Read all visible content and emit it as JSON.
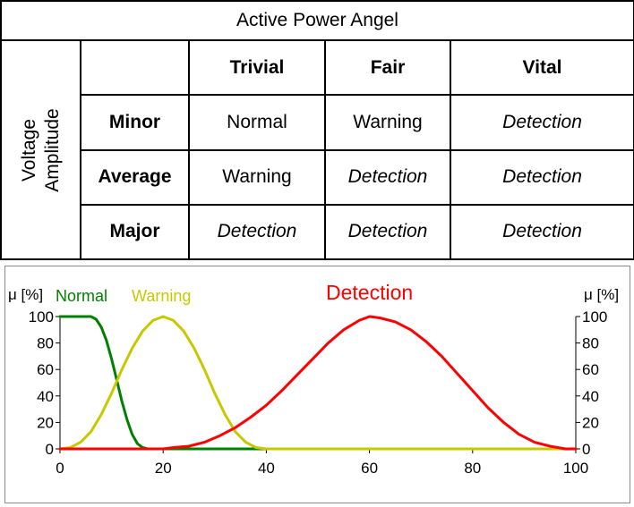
{
  "table": {
    "title": "Active Power Angel",
    "row_axis_label": [
      "Voltage",
      "Amplitude"
    ],
    "columns": [
      "Trivial",
      "Fair",
      "Vital"
    ],
    "rows": [
      {
        "label": "Minor",
        "cells": [
          "Normal",
          "Warning",
          "Detection"
        ]
      },
      {
        "label": "Average",
        "cells": [
          "Warning",
          "Detection",
          "Detection"
        ]
      },
      {
        "label": "Major",
        "cells": [
          "Detection",
          "Detection",
          "Detection"
        ]
      }
    ]
  },
  "chart_data": {
    "type": "line",
    "ylabel_left": "μ [%]",
    "ylabel_right": "μ [%]",
    "xlim": [
      0,
      100
    ],
    "ylim": [
      0,
      100
    ],
    "xticks": [
      0,
      20,
      40,
      60,
      80,
      100
    ],
    "yticks": [
      0,
      20,
      40,
      60,
      80,
      100
    ],
    "grid": false,
    "series": [
      {
        "name": "Normal",
        "color": "#008000",
        "x": [
          0,
          2,
          4,
          6,
          7,
          8,
          9,
          10,
          11,
          12,
          13,
          14,
          15,
          16,
          17,
          18,
          20,
          40,
          60,
          80,
          100
        ],
        "y": [
          100,
          100,
          100,
          100,
          98,
          92,
          82,
          68,
          52,
          36,
          22,
          11,
          4,
          1,
          0,
          0,
          0,
          0,
          0,
          0,
          0
        ]
      },
      {
        "name": "Warning",
        "color": "#c8c800",
        "x": [
          0,
          2,
          4,
          6,
          8,
          10,
          12,
          14,
          16,
          18,
          20,
          22,
          24,
          26,
          28,
          30,
          32,
          34,
          36,
          38,
          40,
          60,
          80,
          100
        ],
        "y": [
          0,
          1,
          5,
          13,
          26,
          42,
          60,
          76,
          89,
          97,
          100,
          97,
          89,
          76,
          60,
          42,
          26,
          13,
          5,
          1,
          0,
          0,
          0,
          0
        ]
      },
      {
        "name": "Detection",
        "color": "#ff0000",
        "x": [
          0,
          20,
          22,
          25,
          28,
          31,
          34,
          37,
          40,
          43,
          46,
          49,
          52,
          55,
          58,
          60,
          62,
          65,
          68,
          71,
          74,
          77,
          80,
          83,
          86,
          89,
          92,
          95,
          98,
          100
        ],
        "y": [
          0,
          0,
          1,
          2,
          5,
          10,
          16,
          24,
          33,
          44,
          56,
          68,
          80,
          90,
          97,
          100,
          99,
          96,
          90,
          81,
          70,
          57,
          44,
          31,
          20,
          11,
          5,
          2,
          0,
          0
        ]
      }
    ]
  }
}
